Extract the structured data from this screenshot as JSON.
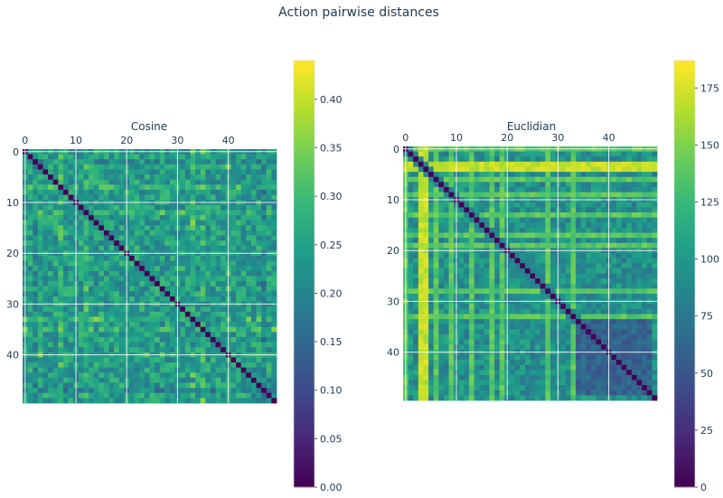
{
  "figure": {
    "title": "Action pairwise distances"
  },
  "chart_data": [
    {
      "type": "heatmap",
      "title": "Cosine",
      "size": 50,
      "x_ticks": [
        0,
        10,
        20,
        30,
        40
      ],
      "y_ticks": [
        0,
        10,
        20,
        30,
        40
      ],
      "x_tick_position": "top",
      "grid": true,
      "colormap": "viridis",
      "colorbar": {
        "min": 0.0,
        "max": 0.44,
        "ticks": [
          "0.00",
          "0.05",
          "0.10",
          "0.15",
          "0.20",
          "0.25",
          "0.30",
          "0.35",
          "0.40"
        ]
      },
      "diagonal_value": 0.0,
      "typical_value": 0.28,
      "bright_rows_cols": [
        7,
        12,
        33,
        35,
        40
      ],
      "dark_rows_cols": [
        2,
        47
      ]
    },
    {
      "type": "heatmap",
      "title": "Euclidian",
      "size": 50,
      "x_ticks": [
        0,
        10,
        20,
        30,
        40
      ],
      "y_ticks": [
        0,
        10,
        20,
        30,
        40
      ],
      "x_tick_position": "top",
      "grid": true,
      "colormap": "viridis",
      "colorbar": {
        "min": 0,
        "max": 187,
        "ticks": [
          "0",
          "25",
          "50",
          "75",
          "100",
          "125",
          "150",
          "175"
        ]
      },
      "diagonal_value": 0,
      "typical_value": 95,
      "bright_rows_cols": [
        3,
        4
      ],
      "medium_rows_cols": [
        0,
        6,
        9,
        13,
        17,
        19,
        28,
        33
      ],
      "dark_block": [
        33,
        48
      ]
    }
  ]
}
